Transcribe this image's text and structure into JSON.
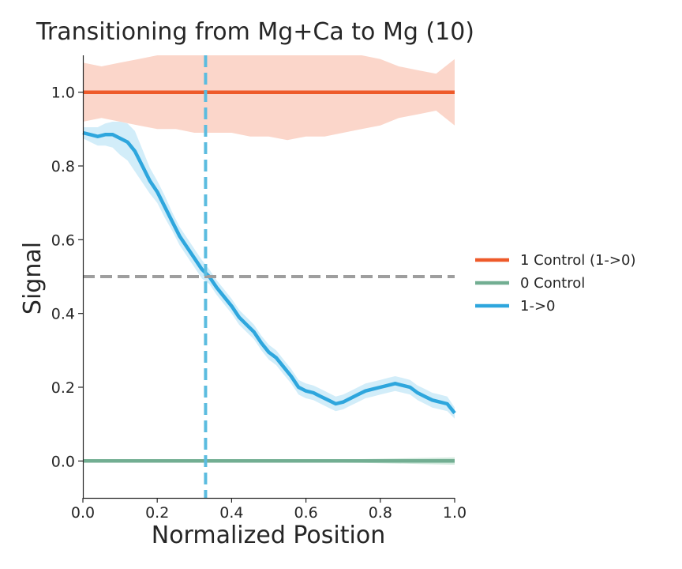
{
  "chart_data": {
    "type": "line",
    "title": "Transitioning from Mg+Ca to Mg (10)",
    "xlabel": "Normalized Position",
    "ylabel": "Signal",
    "xlim": [
      0.0,
      1.0
    ],
    "ylim": [
      -0.1,
      1.1
    ],
    "x_ticks": [
      "0.0",
      "0.2",
      "0.4",
      "0.6",
      "0.8",
      "1.0"
    ],
    "y_ticks": [
      "0.0",
      "0.2",
      "0.4",
      "0.6",
      "0.8",
      "1.0"
    ],
    "grid": false,
    "legend_position": "right",
    "reference_lines": [
      {
        "orientation": "horizontal",
        "value": 0.5,
        "style": "dashed",
        "color": "#9e9e9e"
      },
      {
        "orientation": "vertical",
        "value": 0.33,
        "style": "dashed",
        "color": "#5bbcdf"
      }
    ],
    "series": [
      {
        "name": "1 Control (1->0)",
        "color": "#ee5a2a",
        "band_color": "#f9c5b4",
        "x": [
          0.0,
          1.0
        ],
        "y": [
          1.0,
          1.0
        ],
        "band_x": [
          0.0,
          0.05,
          0.1,
          0.15,
          0.2,
          0.25,
          0.3,
          0.35,
          0.4,
          0.45,
          0.5,
          0.55,
          0.6,
          0.65,
          0.7,
          0.75,
          0.8,
          0.85,
          0.9,
          0.95,
          1.0
        ],
        "band_lower": [
          0.92,
          0.93,
          0.92,
          0.91,
          0.9,
          0.9,
          0.89,
          0.89,
          0.89,
          0.88,
          0.88,
          0.87,
          0.88,
          0.88,
          0.89,
          0.9,
          0.91,
          0.93,
          0.94,
          0.95,
          0.91
        ],
        "band_upper": [
          1.08,
          1.07,
          1.08,
          1.09,
          1.1,
          1.1,
          1.11,
          1.11,
          1.11,
          1.12,
          1.12,
          1.13,
          1.12,
          1.12,
          1.11,
          1.1,
          1.09,
          1.07,
          1.06,
          1.05,
          1.09
        ]
      },
      {
        "name": "0 Control",
        "color": "#72ae92",
        "band_color": "#bfe0cf",
        "x": [
          0.0,
          1.0
        ],
        "y": [
          0.0,
          0.0
        ],
        "band_x": [
          0.0,
          0.25,
          0.5,
          0.75,
          0.9,
          1.0
        ],
        "band_lower": [
          -0.004,
          -0.004,
          -0.003,
          -0.005,
          -0.008,
          -0.01
        ],
        "band_upper": [
          0.004,
          0.004,
          0.003,
          0.005,
          0.008,
          0.01
        ]
      },
      {
        "name": "1->0",
        "color": "#2ea6dd",
        "band_color": "#bfe5f6",
        "x": [
          0.0,
          0.02,
          0.04,
          0.06,
          0.08,
          0.1,
          0.12,
          0.14,
          0.16,
          0.18,
          0.2,
          0.22,
          0.24,
          0.26,
          0.28,
          0.3,
          0.32,
          0.34,
          0.36,
          0.38,
          0.4,
          0.42,
          0.44,
          0.46,
          0.48,
          0.5,
          0.52,
          0.54,
          0.56,
          0.58,
          0.6,
          0.62,
          0.64,
          0.66,
          0.68,
          0.7,
          0.72,
          0.74,
          0.76,
          0.78,
          0.8,
          0.82,
          0.84,
          0.86,
          0.88,
          0.9,
          0.92,
          0.94,
          0.96,
          0.98,
          1.0
        ],
        "y": [
          0.89,
          0.885,
          0.88,
          0.885,
          0.885,
          0.875,
          0.865,
          0.84,
          0.8,
          0.76,
          0.73,
          0.69,
          0.65,
          0.61,
          0.58,
          0.55,
          0.52,
          0.5,
          0.47,
          0.445,
          0.42,
          0.39,
          0.37,
          0.35,
          0.32,
          0.295,
          0.28,
          0.255,
          0.23,
          0.2,
          0.19,
          0.185,
          0.175,
          0.165,
          0.155,
          0.16,
          0.17,
          0.18,
          0.19,
          0.195,
          0.2,
          0.205,
          0.21,
          0.205,
          0.2,
          0.185,
          0.175,
          0.165,
          0.16,
          0.155,
          0.13
        ],
        "band_offsets": [
          0.015,
          0.02,
          0.025,
          0.03,
          0.035,
          0.045,
          0.05,
          0.055,
          0.045,
          0.035,
          0.03,
          0.03,
          0.025,
          0.025,
          0.025,
          0.025,
          0.025,
          0.02,
          0.02,
          0.02,
          0.02,
          0.02,
          0.02,
          0.02,
          0.02,
          0.02,
          0.02,
          0.02,
          0.02,
          0.02,
          0.02,
          0.02,
          0.02,
          0.02,
          0.02,
          0.02,
          0.02,
          0.02,
          0.02,
          0.02,
          0.02,
          0.02,
          0.02,
          0.02,
          0.02,
          0.02,
          0.02,
          0.02,
          0.02,
          0.02,
          0.015
        ]
      }
    ]
  }
}
